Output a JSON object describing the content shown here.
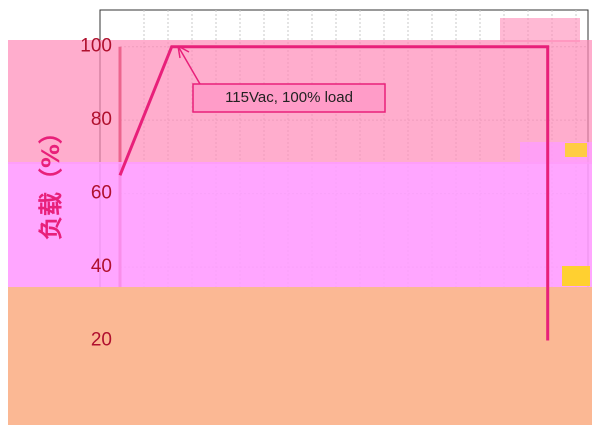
{
  "chart_data": {
    "type": "line",
    "y_label": "负载（%）",
    "annotation": "115Vac, 100% load",
    "x": [
      0,
      11,
      91,
      91
    ],
    "xlim": [
      0,
      100
    ],
    "series": [
      {
        "name": "115Vac",
        "color": "#e8207a",
        "values": [
          65,
          100,
          100,
          20
        ]
      }
    ],
    "ylim": [
      0,
      110
    ],
    "yticks": [
      20,
      40,
      60,
      80,
      100
    ],
    "grid": true
  }
}
